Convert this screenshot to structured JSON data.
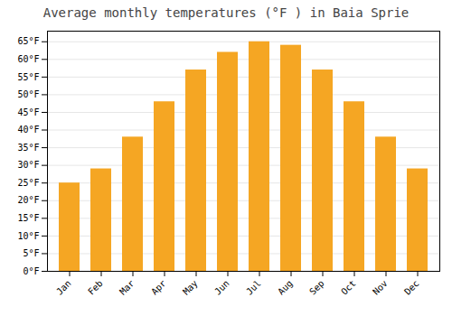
{
  "chart_data": {
    "type": "bar",
    "title": "Average monthly temperatures (°F ) in Baia Sprie",
    "categories": [
      "Jan",
      "Feb",
      "Mar",
      "Apr",
      "May",
      "Jun",
      "Jul",
      "Aug",
      "Sep",
      "Oct",
      "Nov",
      "Dec"
    ],
    "values": [
      25,
      29,
      38,
      48,
      57,
      62,
      65,
      64,
      57,
      48,
      38,
      29
    ],
    "color": "#F5A623",
    "ylim": [
      0,
      68
    ],
    "yticks": [
      {
        "value": 0,
        "label": "0°F"
      },
      {
        "value": 5,
        "label": "5°F"
      },
      {
        "value": 10,
        "label": "10°F"
      },
      {
        "value": 15,
        "label": "15°F"
      },
      {
        "value": 20,
        "label": "20°F"
      },
      {
        "value": 25,
        "label": "25°F"
      },
      {
        "value": 30,
        "label": "30°F"
      },
      {
        "value": 35,
        "label": "35°F"
      },
      {
        "value": 40,
        "label": "40°F"
      },
      {
        "value": 45,
        "label": "45°F"
      },
      {
        "value": 50,
        "label": "50°F"
      },
      {
        "value": 55,
        "label": "55°F"
      },
      {
        "value": 60,
        "label": "60°F"
      },
      {
        "value": 65,
        "label": "65°F"
      }
    ],
    "grid": true
  }
}
